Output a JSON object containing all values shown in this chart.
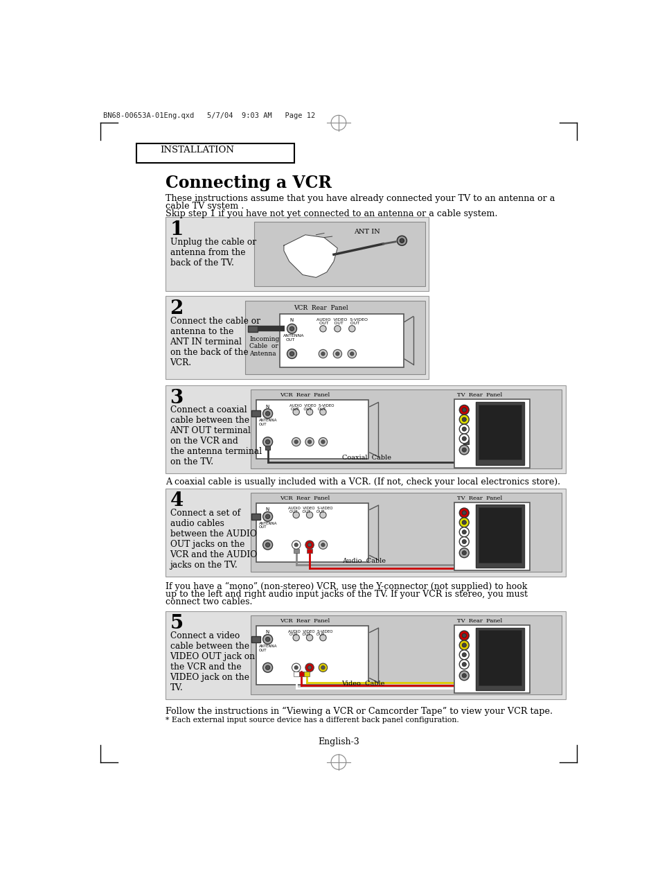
{
  "bg_color": "#ffffff",
  "header_text": "BN68-00653A-01Eng.qxd   5/7/04  9:03 AM   Page 12",
  "section_title": "INSTALLATION",
  "main_title": "Connecting a VCR",
  "intro_text1": "These instructions assume that you have already connected your TV to an antenna or a",
  "intro_text2": "cable TV system .",
  "intro_text3": "Skip step 1 if you have not yet connected to an antenna or a cable system.",
  "step1_num": "1",
  "step1_text": "Unplug the cable or\nantenna from the\nback of the TV.",
  "step2_num": "2",
  "step2_text": "Connect the cable or\nantenna to the\nANT IN terminal\non the back of the\nVCR.",
  "step3_num": "3",
  "step3_text": "Connect a coaxial\ncable between the\nANT OUT terminal\non the VCR and\nthe antenna terminal\non the TV.",
  "step3_note": "A coaxial cable is usually included with a VCR. (If not, check your local electronics store).",
  "step4_num": "4",
  "step4_text": "Connect a set of\naudio cables\nbetween the AUDIO\nOUT jacks on the\nVCR and the AUDIO\njacks on the TV.",
  "step4_note1": "If you have a “mono” (non-stereo) VCR, use the Y-connector (not supplied) to hook",
  "step4_note2": "up to the left and right audio input jacks of the TV. If your VCR is stereo, you must",
  "step4_note3": "connect two cables.",
  "step5_num": "5",
  "step5_text": "Connect a video\ncable between the\nVIDEO OUT jack on\nthe VCR and the\nVIDEO jack on the\nTV.",
  "footer_note": "Follow the instructions in “Viewing a VCR or Camcorder Tape” to view your VCR tape.",
  "footer_note2": "* Each external input source device has a different back panel configuration.",
  "page_num": "English-3",
  "box_bg": "#e0e0e0",
  "diagram_bg": "#c8c8c8",
  "white": "#ffffff"
}
